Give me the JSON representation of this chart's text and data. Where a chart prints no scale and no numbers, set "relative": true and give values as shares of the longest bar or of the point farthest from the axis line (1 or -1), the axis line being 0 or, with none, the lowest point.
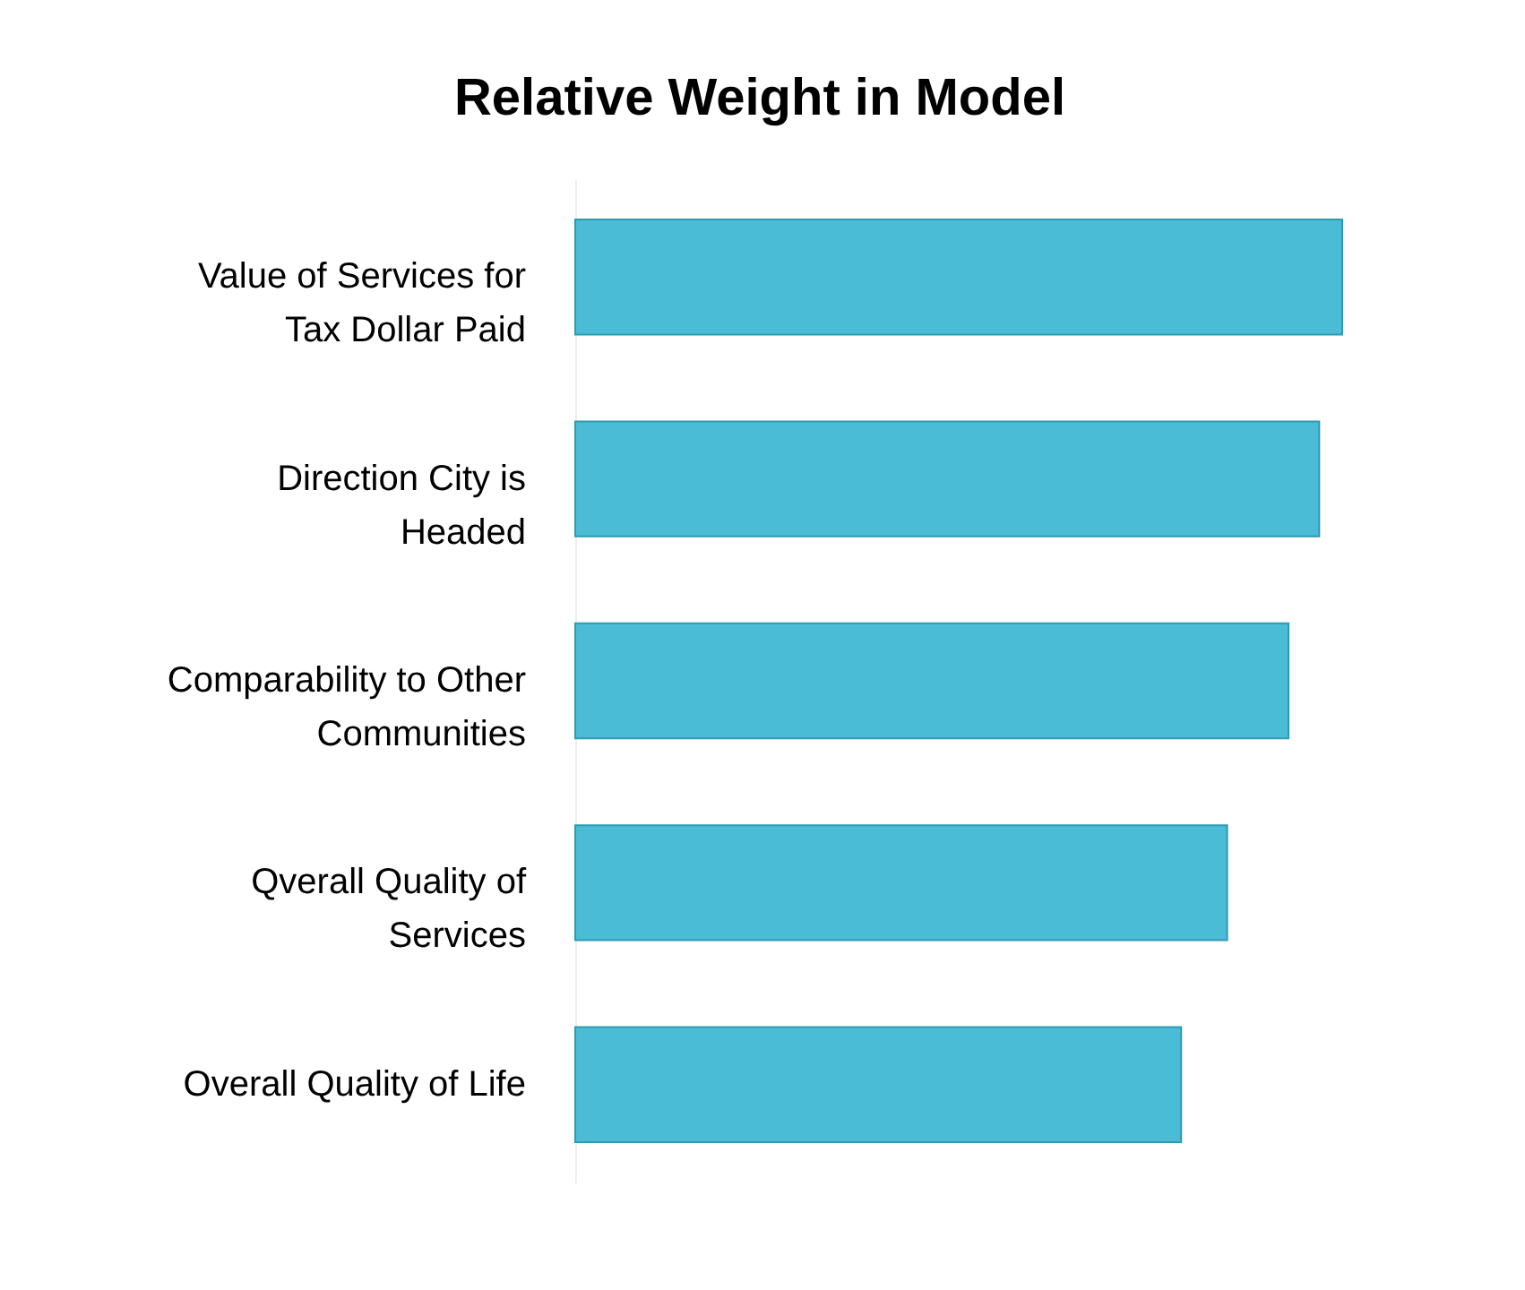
{
  "chart_data": {
    "type": "bar",
    "orientation": "horizontal",
    "relative": true,
    "title": "Relative Weight in Model",
    "categories": [
      "Value of Services for Tax Dollar Paid",
      "Direction City is Headed",
      "Comparability to Other Communities",
      "Qverall Quality of Services",
      "Overall Quality of Life"
    ],
    "values": [
      1,
      0.97,
      0.93,
      0.85,
      0.79
    ],
    "color": "#4bbcd6"
  }
}
